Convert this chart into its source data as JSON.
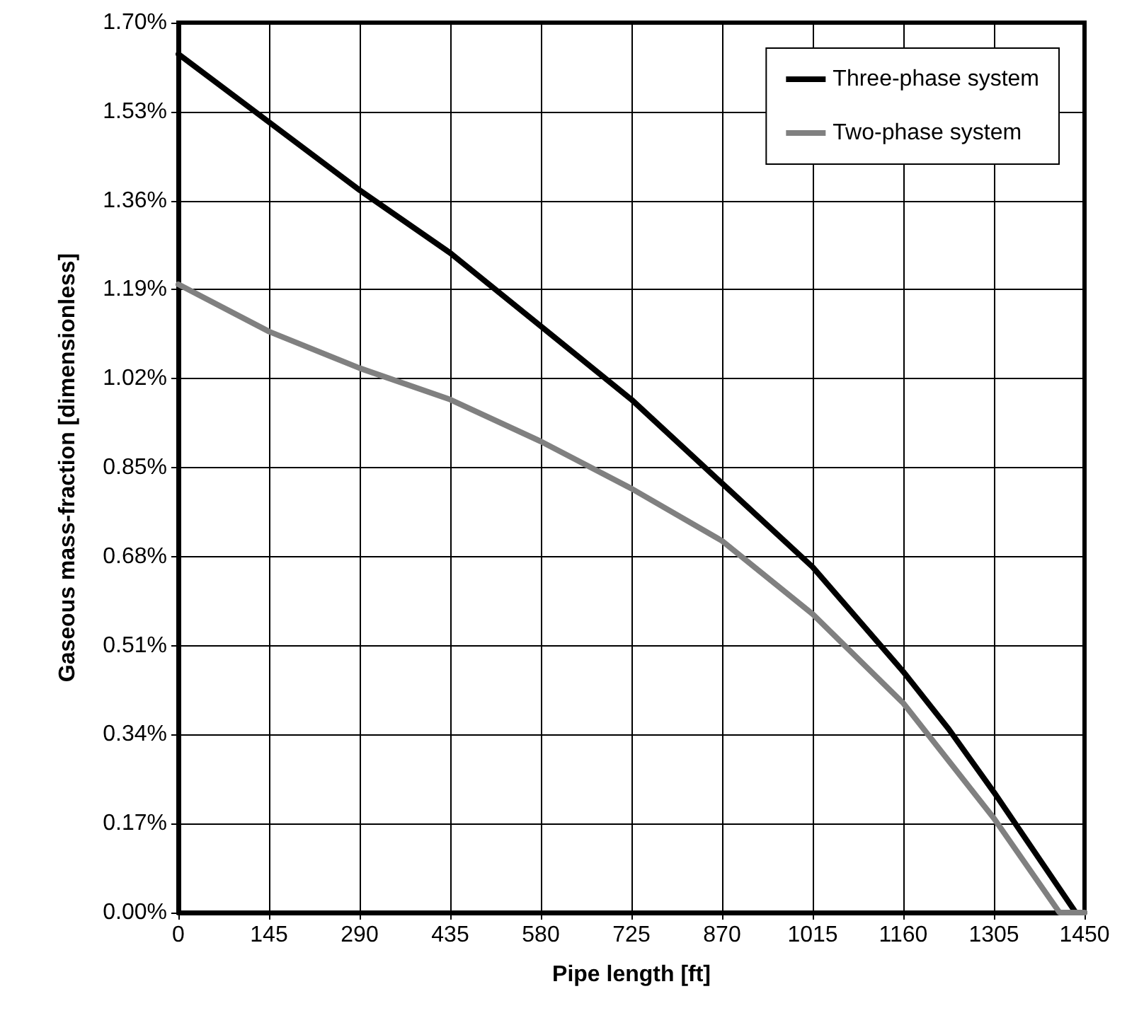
{
  "chart_data": {
    "type": "line",
    "xlabel": "Pipe length [ft]",
    "ylabel": "Gaseous mass-fraction [dimensionless]",
    "x": [
      0,
      145,
      290,
      435,
      580,
      725,
      870,
      1015,
      1160,
      1233,
      1305,
      1436,
      1450
    ],
    "series": [
      {
        "name": "Three-phase system",
        "color": "#000000",
        "values": [
          1.64,
          1.51,
          1.38,
          1.26,
          1.12,
          0.98,
          0.82,
          0.66,
          0.46,
          0.35,
          0.23,
          0,
          0
        ]
      },
      {
        "name": "Two-phase system",
        "color": "#808080",
        "x": [
          0,
          145,
          290,
          435,
          580,
          725,
          870,
          1015,
          1160,
          1305,
          1410,
          1450
        ],
        "values": [
          1.2,
          1.11,
          1.04,
          0.98,
          0.9,
          0.81,
          0.71,
          0.57,
          0.4,
          0.18,
          0,
          0
        ]
      }
    ],
    "xlim": [
      0,
      1450
    ],
    "xticks": [
      0,
      145,
      290,
      435,
      580,
      725,
      870,
      1015,
      1160,
      1305,
      1450
    ],
    "ylim": [
      0,
      1.7
    ],
    "yticks": [
      {
        "value": 0,
        "label": "0.00%"
      },
      {
        "value": 0.17,
        "label": "0.17%"
      },
      {
        "value": 0.34,
        "label": "0.34%"
      },
      {
        "value": 0.51,
        "label": "0.51%"
      },
      {
        "value": 0.68,
        "label": "0.68%"
      },
      {
        "value": 0.85,
        "label": "0.85%"
      },
      {
        "value": 1.02,
        "label": "1.02%"
      },
      {
        "value": 1.19,
        "label": "1.19%"
      },
      {
        "value": 1.36,
        "label": "1.36%"
      },
      {
        "value": 1.53,
        "label": "1.53%"
      },
      {
        "value": 1.7,
        "label": "1.70%"
      }
    ],
    "grid": true,
    "legend": "top right",
    "marker": "none",
    "line_style": "solid"
  }
}
